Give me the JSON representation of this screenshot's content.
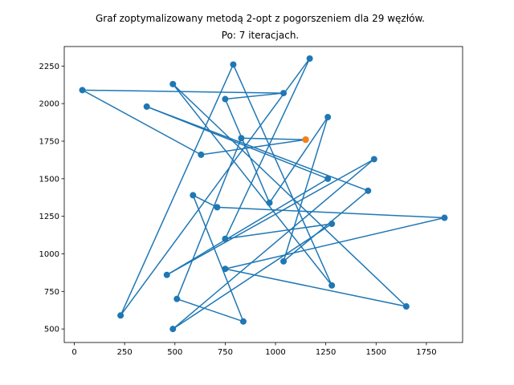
{
  "chart_data": {
    "type": "line",
    "title_lines": [
      "Graf zoptymalizowany metodą 2-opt z pogorszeniem dla 29 węzłów.",
      "Po: 7 iteracjach."
    ],
    "xlabel": "",
    "ylabel": "",
    "xlim": [
      -50,
      1930
    ],
    "ylim": [
      410,
      2380
    ],
    "xticks": [
      0,
      250,
      500,
      750,
      1000,
      1250,
      1500,
      1750
    ],
    "yticks": [
      500,
      750,
      1000,
      1250,
      1500,
      1750,
      2000,
      2250
    ],
    "grid": false,
    "series": [
      {
        "line_color": "#1f77b4",
        "marker_color": "#1f77b4",
        "points": [
          [
            1150,
            1760
          ],
          [
            630,
            1660
          ],
          [
            40,
            2090
          ],
          [
            1040,
            2070
          ],
          [
            750,
            2030
          ],
          [
            970,
            1340
          ],
          [
            1260,
            1910
          ],
          [
            1040,
            950
          ],
          [
            1460,
            1420
          ],
          [
            360,
            1980
          ],
          [
            1260,
            1500
          ],
          [
            460,
            860
          ],
          [
            1490,
            1630
          ],
          [
            490,
            500
          ],
          [
            1280,
            1200
          ],
          [
            750,
            1100
          ],
          [
            1170,
            2300
          ],
          [
            230,
            590
          ],
          [
            790,
            2260
          ],
          [
            1280,
            790
          ],
          [
            490,
            2130
          ],
          [
            1650,
            650
          ],
          [
            750,
            900
          ],
          [
            1840,
            1240
          ],
          [
            710,
            1310
          ],
          [
            590,
            1390
          ],
          [
            840,
            550
          ],
          [
            510,
            700
          ],
          [
            830,
            1770
          ],
          [
            1150,
            1760
          ]
        ]
      },
      {
        "marker_color": "#ff7f0e",
        "points": [
          [
            1150,
            1760
          ]
        ]
      }
    ]
  }
}
